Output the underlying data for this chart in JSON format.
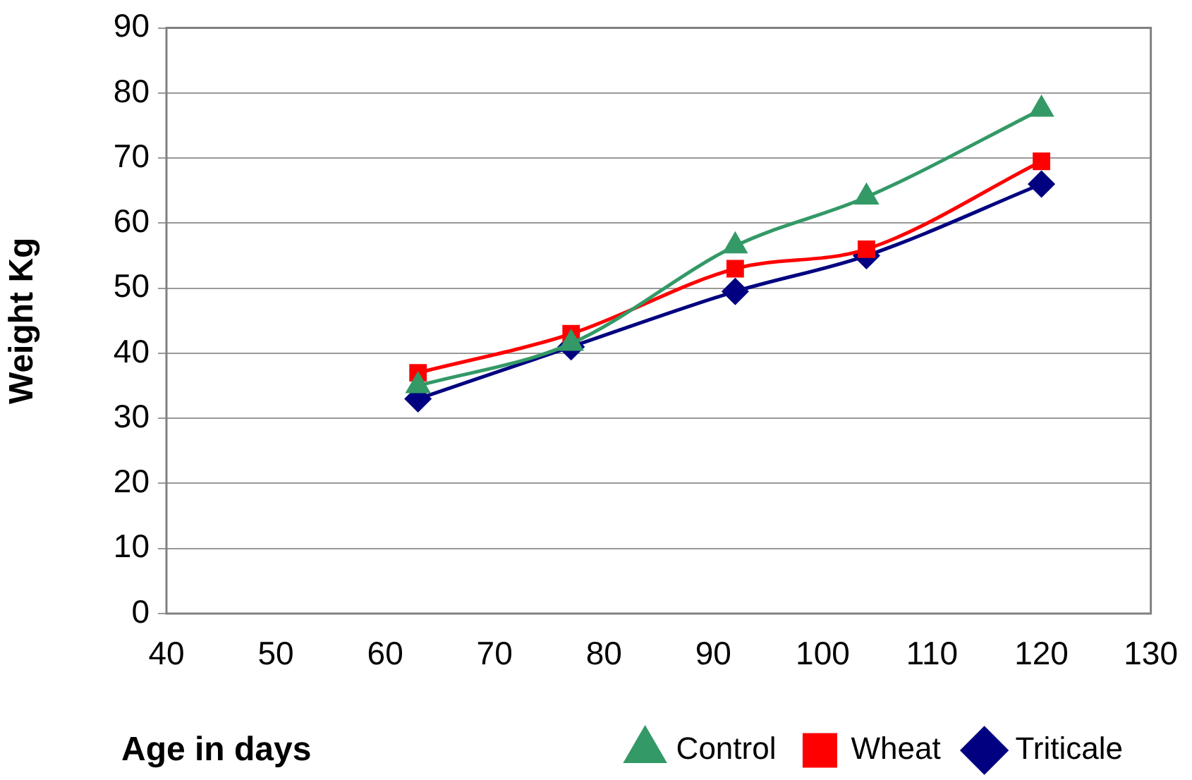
{
  "chart_data": {
    "type": "line",
    "xlabel": "Age in days",
    "ylabel": "Weight Kg",
    "x": [
      63,
      77,
      92,
      104,
      120
    ],
    "series": [
      {
        "name": "Triticale",
        "color": "#000080",
        "marker": "diamond",
        "values": [
          33,
          41,
          49.5,
          55,
          66
        ]
      },
      {
        "name": "Wheat",
        "color": "#ff0000",
        "marker": "square",
        "values": [
          37,
          43,
          53,
          56,
          69.5
        ]
      },
      {
        "name": "Control",
        "color": "#339966",
        "marker": "triangle",
        "values": [
          35,
          41.5,
          56.5,
          64,
          77.5
        ]
      }
    ],
    "xlim": [
      40,
      130
    ],
    "xticks": [
      40,
      50,
      60,
      70,
      80,
      90,
      100,
      110,
      120,
      130
    ],
    "ylim": [
      0,
      90
    ],
    "yticks": [
      0,
      10,
      20,
      30,
      40,
      50,
      60,
      70,
      80,
      90
    ],
    "grid": "y",
    "legend": "bottom",
    "line_style": "solid"
  }
}
